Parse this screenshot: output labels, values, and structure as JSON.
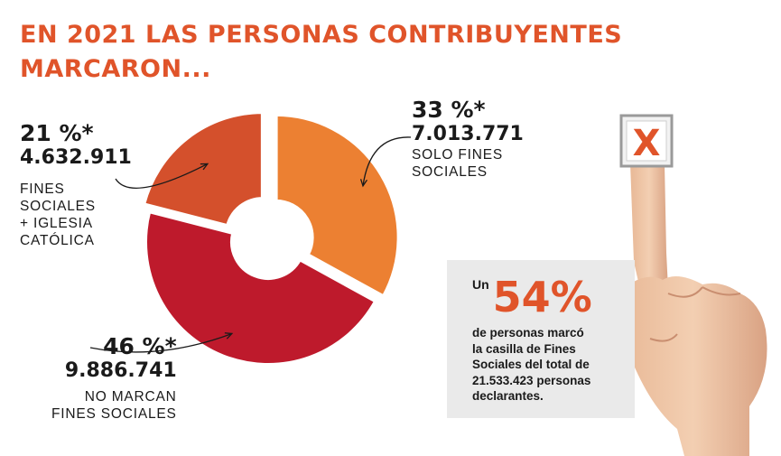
{
  "title": {
    "line1": "EN 2021 LAS PERSONAS CONTRIBUYENTES",
    "line2": "MARCARON..."
  },
  "colors": {
    "title": "#e0542a",
    "solo_fines": "#ec8032",
    "no_marcan": "#be1a2c",
    "fines_iglesia": "#d4502c",
    "callout_bg": "#eaeaea",
    "accent": "#e0542a"
  },
  "chart_data": {
    "type": "pie",
    "title": "EN 2021 LAS PERSONAS CONTRIBUYENTES MARCARON...",
    "slices": [
      {
        "percent": 33,
        "percent_label": "33 %*",
        "count": 7013771,
        "count_label": "7.013.771",
        "label_lines": [
          "SOLO FINES",
          "SOCIALES"
        ],
        "color": "#ec8032",
        "exploded": true
      },
      {
        "percent": 46,
        "percent_label": "46 %*",
        "count": 9886741,
        "count_label": "9.886.741",
        "label_lines": [
          "NO MARCAN",
          "FINES SOCIALES"
        ],
        "color": "#be1a2c",
        "exploded": false
      },
      {
        "percent": 21,
        "percent_label": "21 %*",
        "count": 4632911,
        "count_label": "4.632.911",
        "label_lines": [
          "FINES",
          "SOCIALES",
          "+ IGLESIA",
          "CATÓLICA"
        ],
        "color": "#d4502c",
        "exploded": true
      }
    ]
  },
  "callout": {
    "prefix": "Un",
    "value": "54%",
    "text_lines": [
      "de personas marcó",
      "la casilla de Fines",
      "Sociales del total de",
      "21.533.423 personas",
      "declarantes."
    ]
  },
  "checkbox_mark": "X"
}
